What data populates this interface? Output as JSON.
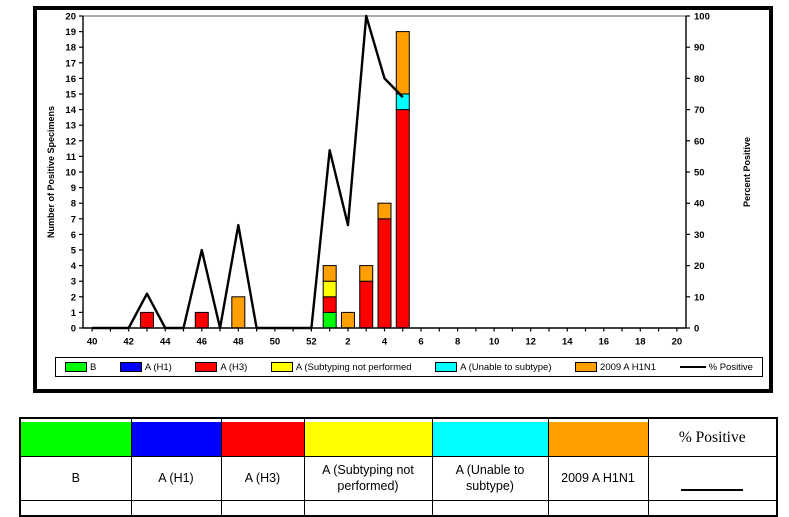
{
  "chart": {
    "legend": {
      "items": [
        {
          "label": "B",
          "color": "#00FF00"
        },
        {
          "label": "A (H1)",
          "color": "#0000FF"
        },
        {
          "label": "A (H3)",
          "color": "#FF0000"
        },
        {
          "label": "A (Subtyping not performed",
          "color": "#FFFF00"
        },
        {
          "label": "A (Unable to subtype)",
          "color": "#00FFFF"
        },
        {
          "label": "2009 A H1N1",
          "color": "#FFA000"
        },
        {
          "label": "% Positive",
          "symbol": "line",
          "color": "#000000"
        }
      ]
    }
  },
  "chart_data": {
    "type": "bar",
    "subtype": "stacked bars with overlaid line on secondary axis",
    "title": "",
    "categories": [
      "40",
      "41",
      "42",
      "43",
      "44",
      "45",
      "46",
      "47",
      "48",
      "49",
      "50",
      "51",
      "52",
      "1",
      "2",
      "3",
      "4",
      "5",
      "6",
      "7",
      "8",
      "9",
      "10",
      "11",
      "12",
      "13",
      "14",
      "15",
      "16",
      "17",
      "18",
      "19",
      "20"
    ],
    "x_tick_labels": [
      "40",
      "42",
      "44",
      "46",
      "48",
      "50",
      "52",
      "2",
      "4",
      "6",
      "8",
      "10",
      "12",
      "14",
      "16",
      "18",
      "20"
    ],
    "series": [
      {
        "name": "B",
        "color": "#00FF00",
        "values": [
          0,
          0,
          0,
          0,
          0,
          0,
          0,
          0,
          0,
          0,
          0,
          0,
          0,
          1,
          0,
          0,
          0,
          0,
          0,
          0,
          0,
          0,
          0,
          0,
          0,
          0,
          0,
          0,
          0,
          0,
          0,
          0,
          0
        ]
      },
      {
        "name": "A (H1)",
        "color": "#0000FF",
        "values": [
          0,
          0,
          0,
          0,
          0,
          0,
          0,
          0,
          0,
          0,
          0,
          0,
          0,
          0,
          0,
          0,
          0,
          0,
          0,
          0,
          0,
          0,
          0,
          0,
          0,
          0,
          0,
          0,
          0,
          0,
          0,
          0,
          0
        ]
      },
      {
        "name": "A (H3)",
        "color": "#FF0000",
        "values": [
          0,
          0,
          0,
          1,
          0,
          0,
          1,
          0,
          0,
          0,
          0,
          0,
          0,
          1,
          0,
          3,
          7,
          14,
          0,
          0,
          0,
          0,
          0,
          0,
          0,
          0,
          0,
          0,
          0,
          0,
          0,
          0,
          0
        ]
      },
      {
        "name": "A (Subtyping not performed)",
        "color": "#FFFF00",
        "values": [
          0,
          0,
          0,
          0,
          0,
          0,
          0,
          0,
          0,
          0,
          0,
          0,
          0,
          1,
          0,
          0,
          0,
          0,
          0,
          0,
          0,
          0,
          0,
          0,
          0,
          0,
          0,
          0,
          0,
          0,
          0,
          0,
          0
        ]
      },
      {
        "name": "A (Unable to subtype)",
        "color": "#00FFFF",
        "values": [
          0,
          0,
          0,
          0,
          0,
          0,
          0,
          0,
          0,
          0,
          0,
          0,
          0,
          0,
          0,
          0,
          0,
          1,
          0,
          0,
          0,
          0,
          0,
          0,
          0,
          0,
          0,
          0,
          0,
          0,
          0,
          0,
          0
        ]
      },
      {
        "name": "2009 A H1N1",
        "color": "#FFA000",
        "values": [
          0,
          0,
          0,
          0,
          0,
          0,
          0,
          0,
          2,
          0,
          0,
          0,
          0,
          1,
          1,
          1,
          1,
          4,
          0,
          0,
          0,
          0,
          0,
          0,
          0,
          0,
          0,
          0,
          0,
          0,
          0,
          0,
          0
        ]
      }
    ],
    "line_series": {
      "name": "% Positive",
      "color": "#000000",
      "axis": "right",
      "values": [
        0,
        0,
        0,
        11,
        0,
        0,
        25,
        0,
        33,
        0,
        0,
        0,
        0,
        57,
        33,
        100,
        80,
        74,
        null,
        null,
        null,
        null,
        null,
        null,
        null,
        null,
        null,
        null,
        null,
        null,
        null,
        null,
        null
      ]
    },
    "ylabel": "Number of Positive Specimens",
    "ylabel_right": "Percent Positive",
    "xlabel": "",
    "ylim": [
      0,
      20
    ],
    "ylim_right": [
      0,
      100
    ],
    "left_tick_step": 1,
    "right_tick_step": 10,
    "grid": "single gray gridline at top (y=20 / 100%)",
    "legend_position": "bottom"
  },
  "table": {
    "header_percent": "% Positive",
    "columns": [
      {
        "label": "B",
        "color": "#00FF00"
      },
      {
        "label": "A (H1)",
        "color": "#0000FF"
      },
      {
        "label": "A (H3)",
        "color": "#FF0000"
      },
      {
        "label": "A (Subtyping not performed)",
        "color": "#FFFF00"
      },
      {
        "label": "A (Unable to subtype)",
        "color": "#00FFFF"
      },
      {
        "label": "2009 A H1N1",
        "color": "#FFA000"
      }
    ]
  }
}
